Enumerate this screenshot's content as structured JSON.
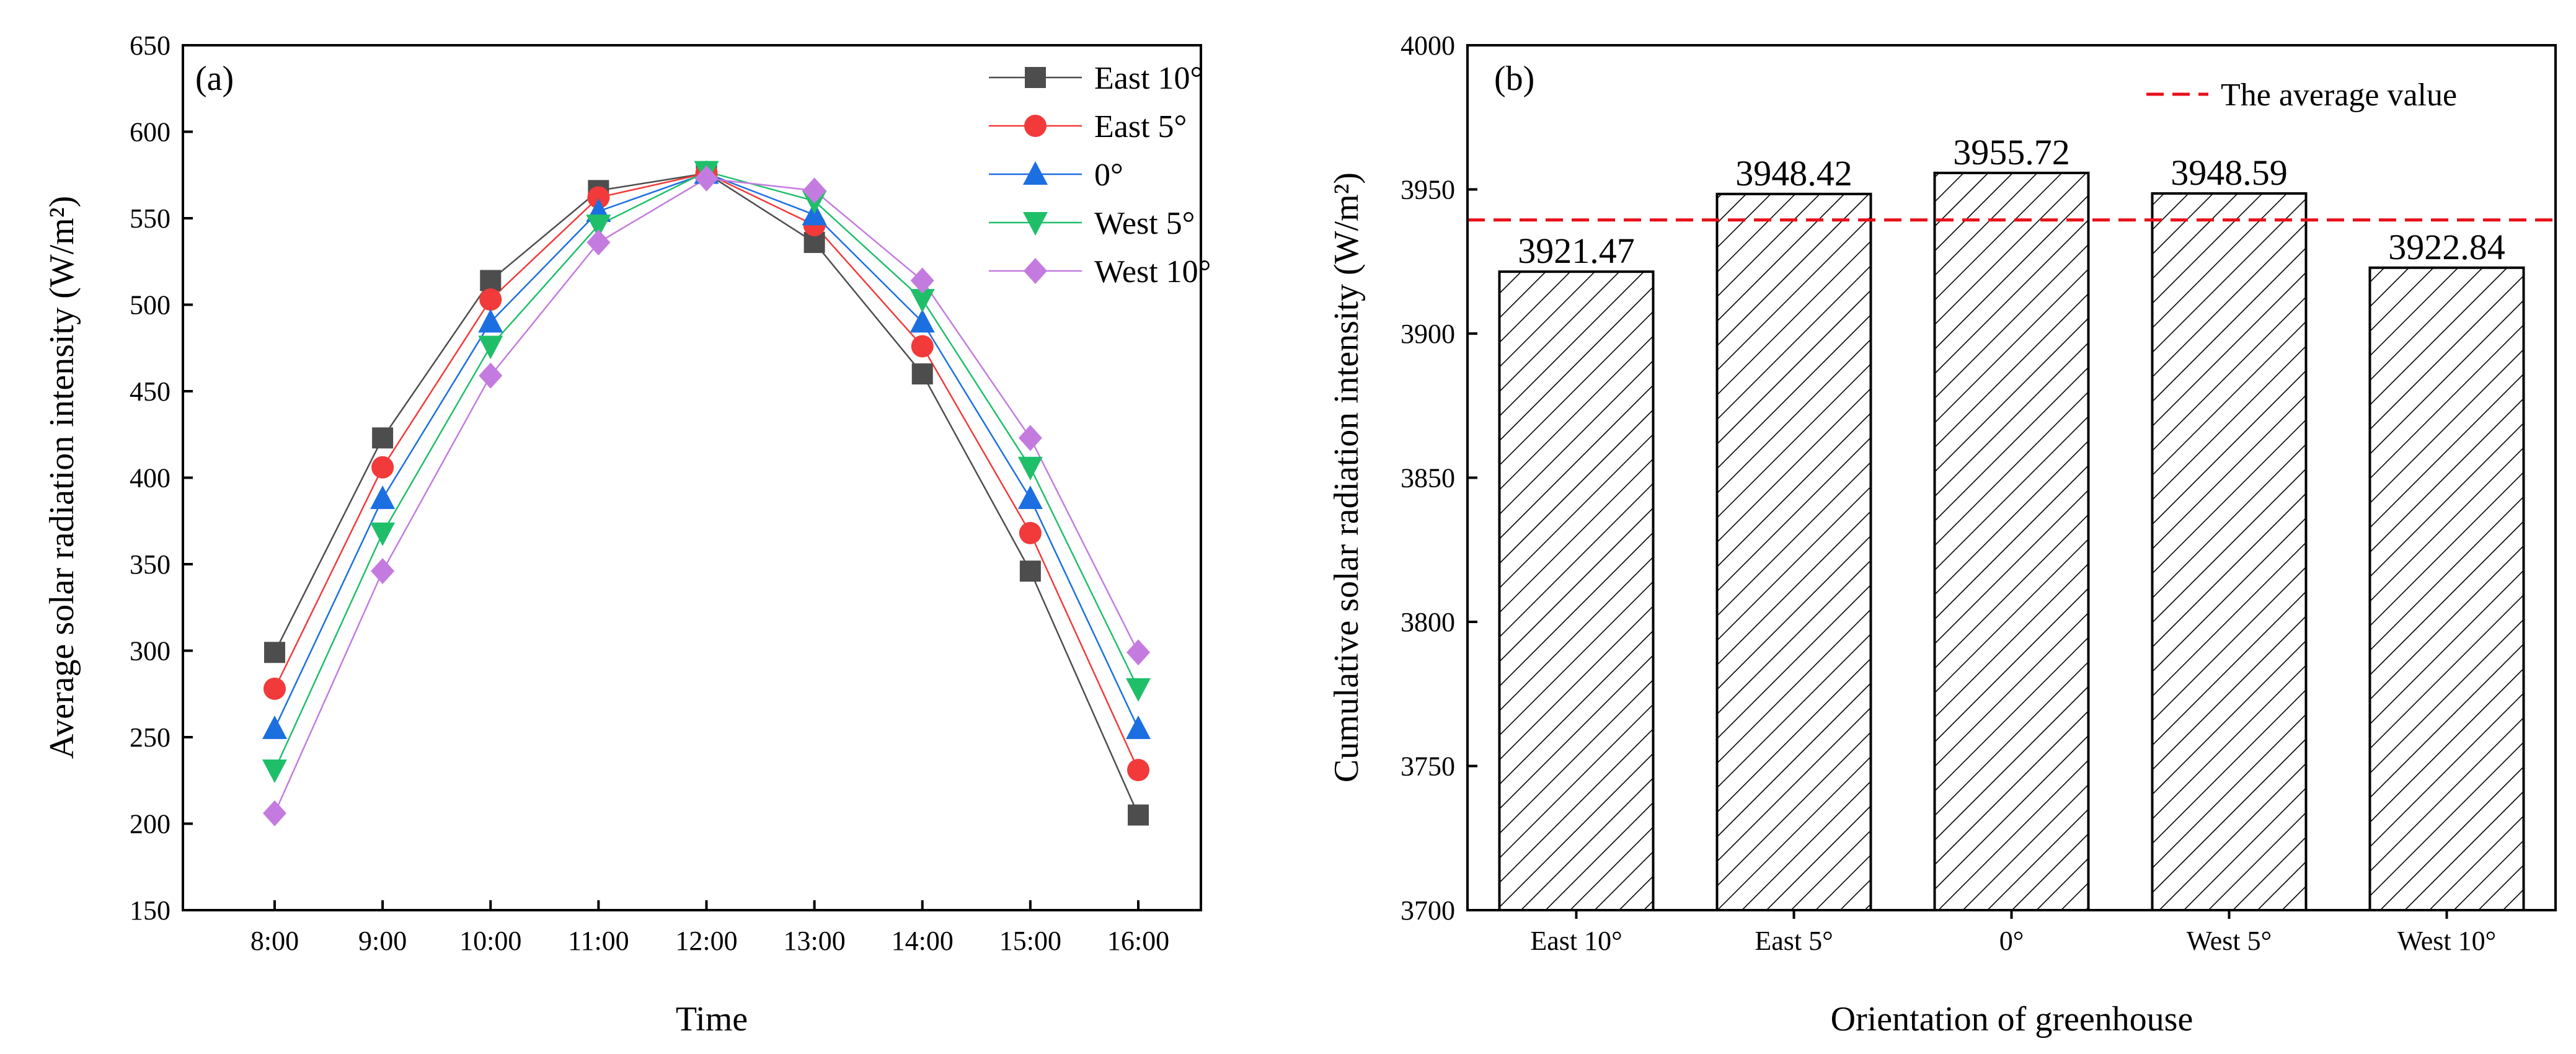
{
  "chart_data": [
    {
      "type": "line",
      "panel_label": "(a)",
      "title": "",
      "xlabel": "Time",
      "ylabel": "Average solar radiation intensity (W/m²)",
      "categories": [
        "8:00",
        "9:00",
        "10:00",
        "11:00",
        "12:00",
        "13:00",
        "14:00",
        "15:00",
        "16:00"
      ],
      "ylim": [
        150,
        650
      ],
      "yticks": [
        150,
        200,
        250,
        300,
        350,
        400,
        450,
        500,
        550,
        600,
        650
      ],
      "legend_position": "top-right",
      "series": [
        {
          "name": "East 10°",
          "color": "#4d4d4d",
          "marker": "square",
          "values": [
            299,
            423,
            514,
            566,
            576,
            536,
            460,
            346,
            205
          ]
        },
        {
          "name": "East 5°",
          "color": "#f23a3a",
          "marker": "circle",
          "values": [
            278,
            406,
            503,
            562,
            576,
            546,
            476,
            368,
            231
          ]
        },
        {
          "name": "0°",
          "color": "#1c6fe0",
          "marker": "triangle-up",
          "values": [
            255,
            388,
            490,
            554,
            576,
            552,
            490,
            388,
            255
          ]
        },
        {
          "name": "West 5°",
          "color": "#1fbf6a",
          "marker": "triangle-down",
          "values": [
            231,
            368,
            476,
            546,
            577,
            560,
            503,
            406,
            278
          ]
        },
        {
          "name": "West 10°",
          "color": "#c47be0",
          "marker": "diamond",
          "values": [
            206,
            346,
            459,
            536,
            573,
            566,
            514,
            423,
            299
          ]
        }
      ]
    },
    {
      "type": "bar",
      "panel_label": "(b)",
      "title": "",
      "xlabel": "Orientation of greenhouse",
      "ylabel": "Cumulative solar radiation intensity (W/m²)",
      "categories": [
        "East 10°",
        "East 5°",
        "0°",
        "West 5°",
        "West 10°"
      ],
      "values": [
        3921.47,
        3948.42,
        3955.72,
        3948.59,
        3922.84
      ],
      "value_labels": [
        "3921.47",
        "3948.42",
        "3955.72",
        "3948.59",
        "3922.84"
      ],
      "ylim": [
        3700,
        4000
      ],
      "yticks": [
        3700,
        3750,
        3800,
        3850,
        3900,
        3950,
        4000
      ],
      "bar_pattern": "diagonal-hatch",
      "average_line": {
        "label": "The average value",
        "value": 3939.4,
        "color": "#e8101a",
        "style": "dashed"
      },
      "legend_position": "top-right"
    }
  ]
}
